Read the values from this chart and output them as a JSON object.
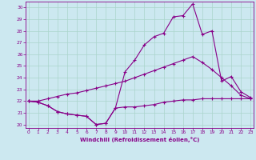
{
  "xlabel": "Windchill (Refroidissement éolien,°C)",
  "bg_color": "#cce8f0",
  "grid_color": "#aad4cc",
  "line_color": "#880088",
  "xticks": [
    0,
    1,
    2,
    3,
    4,
    5,
    6,
    7,
    8,
    9,
    10,
    11,
    12,
    13,
    14,
    15,
    16,
    17,
    18,
    19,
    20,
    21,
    22,
    23
  ],
  "yticks": [
    20,
    21,
    22,
    23,
    24,
    25,
    26,
    27,
    28,
    29,
    30
  ],
  "xlim": [
    -0.3,
    23.3
  ],
  "ylim": [
    19.7,
    30.5
  ],
  "line1_x": [
    0,
    1,
    2,
    3,
    4,
    5,
    6,
    7,
    8,
    9,
    10,
    11,
    12,
    13,
    14,
    15,
    16,
    17,
    18,
    19,
    20,
    21,
    22,
    23
  ],
  "line1_y": [
    22.0,
    21.9,
    21.6,
    21.1,
    20.9,
    20.8,
    20.7,
    20.0,
    20.1,
    21.4,
    21.5,
    21.5,
    21.6,
    21.7,
    21.9,
    22.0,
    22.1,
    22.1,
    22.2,
    22.2,
    22.2,
    22.2,
    22.2,
    22.2
  ],
  "line2_x": [
    0,
    1,
    2,
    3,
    4,
    5,
    6,
    7,
    8,
    9,
    10,
    11,
    12,
    13,
    14,
    15,
    16,
    17,
    18,
    19,
    20,
    21,
    22,
    23
  ],
  "line2_y": [
    22.0,
    22.0,
    22.2,
    22.4,
    22.6,
    22.7,
    22.9,
    23.1,
    23.3,
    23.5,
    23.7,
    24.0,
    24.3,
    24.6,
    24.9,
    25.2,
    25.5,
    25.8,
    25.3,
    24.7,
    24.0,
    23.3,
    22.5,
    22.2
  ],
  "line3_x": [
    0,
    1,
    2,
    3,
    4,
    5,
    6,
    7,
    8,
    9,
    10,
    11,
    12,
    13,
    14,
    15,
    16,
    17,
    18,
    19,
    20,
    21,
    22,
    23
  ],
  "line3_y": [
    22.0,
    21.9,
    21.6,
    21.1,
    20.9,
    20.8,
    20.7,
    20.0,
    20.1,
    21.4,
    24.5,
    25.5,
    26.8,
    27.5,
    27.8,
    29.2,
    29.3,
    30.3,
    27.7,
    28.0,
    23.7,
    24.1,
    22.8,
    22.3
  ]
}
